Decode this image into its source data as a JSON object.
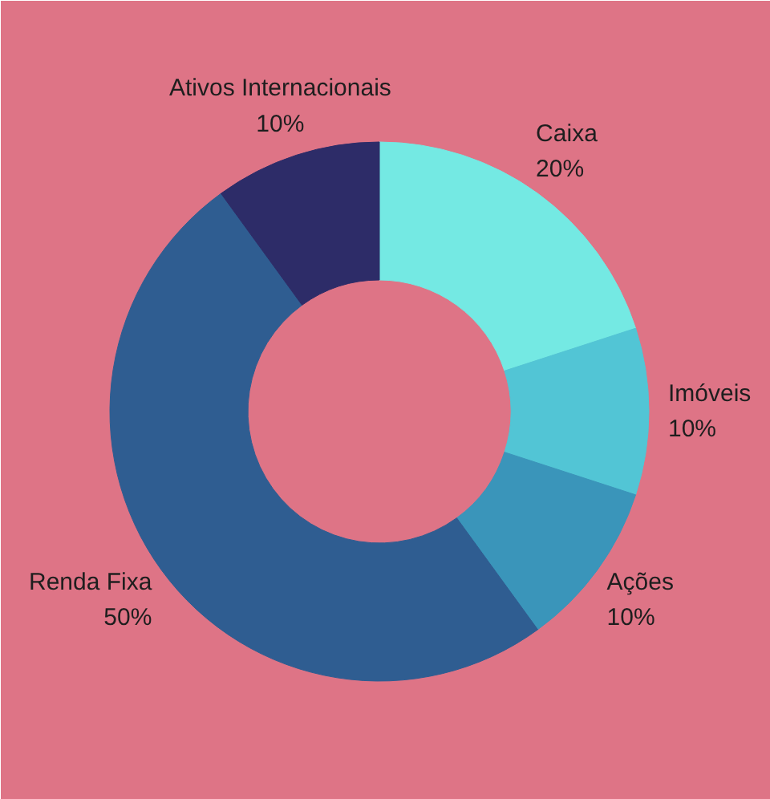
{
  "chart_data": {
    "type": "donut",
    "categories": [
      "Caixa",
      "Imóveis",
      "Ações",
      "Renda Fixa",
      "Ativos Internacionais"
    ],
    "values": [
      20,
      10,
      10,
      50,
      10
    ],
    "colors": [
      "#74e9e3",
      "#52c5d5",
      "#3a95ba",
      "#2f5d91",
      "#2d2c68"
    ],
    "value_labels": [
      "20%",
      "10%",
      "10%",
      "50%",
      "10%"
    ]
  }
}
